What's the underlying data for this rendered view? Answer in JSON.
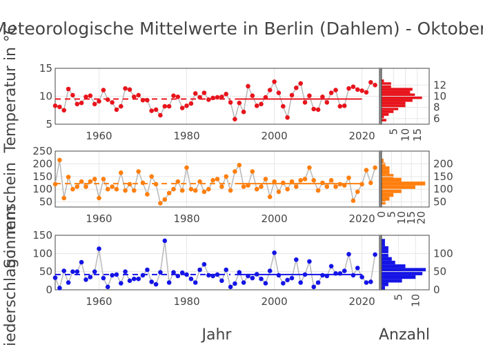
{
  "title": "Meteorologische Mittelwerte in Berlin (Dahlem) - Oktober",
  "x_axis_title": "Jahr",
  "hist_axis_title": "Anzahl",
  "chart_data": [
    {
      "type": "line",
      "name": "temperature",
      "ylabel": "Temperatur in °C",
      "color": "#e8141c",
      "xlim": [
        1950,
        2024
      ],
      "ylim": [
        5,
        15
      ],
      "x_ticks": [
        "1960",
        "1980",
        "2000",
        "2020"
      ],
      "y_ticks": [
        "5",
        "10",
        "15"
      ],
      "x": [
        1950,
        1951,
        1952,
        1953,
        1954,
        1955,
        1956,
        1957,
        1958,
        1959,
        1960,
        1961,
        1962,
        1963,
        1964,
        1965,
        1966,
        1967,
        1968,
        1969,
        1970,
        1971,
        1972,
        1973,
        1974,
        1975,
        1976,
        1977,
        1978,
        1979,
        1980,
        1981,
        1982,
        1983,
        1984,
        1985,
        1986,
        1987,
        1988,
        1989,
        1990,
        1991,
        1992,
        1993,
        1994,
        1995,
        1996,
        1997,
        1998,
        1999,
        2000,
        2001,
        2002,
        2003,
        2004,
        2005,
        2006,
        2007,
        2008,
        2009,
        2010,
        2011,
        2012,
        2013,
        2014,
        2015,
        2016,
        2017,
        2018,
        2019,
        2020,
        2021,
        2022,
        2023
      ],
      "values": [
        8.3,
        8.1,
        7.5,
        11.3,
        10.2,
        8.6,
        8.8,
        9.9,
        10.1,
        8.6,
        9.1,
        11.1,
        9.4,
        8.9,
        7.6,
        8.2,
        11.4,
        11.2,
        9.9,
        10.2,
        9.3,
        9.3,
        7.4,
        7.6,
        6.6,
        8.2,
        8.2,
        10.1,
        9.9,
        7.9,
        8.3,
        8.7,
        10.5,
        9.8,
        10.6,
        9.4,
        9.7,
        9.8,
        9.9,
        10.4,
        8.9,
        5.9,
        8.8,
        7.2,
        11.8,
        10.1,
        8.3,
        8.6,
        9.8,
        11.1,
        12.6,
        10.6,
        8.2,
        6.2,
        10.2,
        11.5,
        12.3,
        8.9,
        10.1,
        7.7,
        7.6,
        9.9,
        8.9,
        10.6,
        11.1,
        8.2,
        8.3,
        11.4,
        11.7,
        11.2,
        11.0,
        10.7,
        12.5,
        12.0
      ],
      "mean_dashed": {
        "from": 1950,
        "to": 1990,
        "value": 9.5
      },
      "mean_solid": {
        "from": 1991,
        "to": 2020,
        "value": 9.5
      },
      "histogram": {
        "bins": [
          5.5,
          6,
          6.5,
          7,
          7.5,
          8,
          8.5,
          9,
          9.5,
          10,
          10.5,
          11,
          11.5,
          12,
          12.5,
          13
        ],
        "counts": [
          2,
          1,
          3,
          5,
          7,
          10,
          10,
          13,
          17,
          14,
          12,
          13,
          4,
          4,
          1,
          0
        ],
        "y_ticks": [
          "6",
          "8",
          "10",
          "12"
        ],
        "x_ticks": [
          "5",
          "10",
          "15"
        ]
      }
    },
    {
      "type": "line",
      "name": "sunshine",
      "ylabel": "Sonnenschein",
      "color": "#ff7f0e",
      "xlim": [
        1950,
        2024
      ],
      "ylim": [
        30,
        250
      ],
      "x_ticks": [
        "1960",
        "1980",
        "2000",
        "2020"
      ],
      "y_ticks": [
        "50",
        "100",
        "150",
        "200",
        "250"
      ],
      "x": [
        1950,
        1951,
        1952,
        1953,
        1954,
        1955,
        1956,
        1957,
        1958,
        1959,
        1960,
        1961,
        1962,
        1963,
        1964,
        1965,
        1966,
        1967,
        1968,
        1969,
        1970,
        1971,
        1972,
        1973,
        1974,
        1975,
        1976,
        1977,
        1978,
        1979,
        1980,
        1981,
        1982,
        1983,
        1984,
        1985,
        1986,
        1987,
        1988,
        1989,
        1990,
        1991,
        1992,
        1993,
        1994,
        1995,
        1996,
        1997,
        1998,
        1999,
        2000,
        2001,
        2002,
        2003,
        2004,
        2005,
        2006,
        2007,
        2008,
        2009,
        2010,
        2011,
        2012,
        2013,
        2014,
        2015,
        2016,
        2017,
        2018,
        2019,
        2020,
        2021,
        2022,
        2023
      ],
      "values": [
        120,
        215,
        65,
        148,
        100,
        110,
        130,
        110,
        130,
        140,
        65,
        140,
        100,
        110,
        100,
        165,
        95,
        120,
        95,
        170,
        125,
        80,
        150,
        120,
        45,
        60,
        85,
        100,
        130,
        95,
        185,
        100,
        95,
        130,
        90,
        100,
        135,
        140,
        110,
        150,
        95,
        170,
        195,
        110,
        115,
        170,
        100,
        110,
        140,
        70,
        130,
        90,
        125,
        100,
        130,
        110,
        135,
        140,
        185,
        135,
        95,
        125,
        110,
        135,
        110,
        120,
        115,
        145,
        55,
        90,
        120,
        175,
        125,
        185
      ],
      "mean_dashed": {
        "from": 1950,
        "to": 1990,
        "value": 122
      },
      "mean_solid": {
        "from": 1991,
        "to": 2020,
        "value": 122
      },
      "histogram": {
        "bins": [
          40,
          55,
          70,
          85,
          100,
          115,
          130,
          145,
          160,
          175,
          190,
          205,
          220
        ],
        "counts": [
          2,
          4,
          6,
          10,
          17,
          22,
          10,
          6,
          4,
          4,
          2,
          1,
          0
        ],
        "y_ticks": [
          "50",
          "100",
          "150",
          "200"
        ],
        "x_ticks": [
          "0",
          "5",
          "10",
          "15",
          "20"
        ]
      }
    },
    {
      "type": "line",
      "name": "precipitation",
      "ylabel": "Niederschlag in mm",
      "color": "#1414e6",
      "xlim": [
        1950,
        2024
      ],
      "ylim": [
        0,
        150
      ],
      "x_ticks": [
        "1960",
        "1980",
        "2000",
        "2020"
      ],
      "y_ticks": [
        "0",
        "50",
        "100",
        "150"
      ],
      "x": [
        1950,
        1951,
        1952,
        1953,
        1954,
        1955,
        1956,
        1957,
        1958,
        1959,
        1960,
        1961,
        1962,
        1963,
        1964,
        1965,
        1966,
        1967,
        1968,
        1969,
        1970,
        1971,
        1972,
        1973,
        1974,
        1975,
        1976,
        1977,
        1978,
        1979,
        1980,
        1981,
        1982,
        1983,
        1984,
        1985,
        1986,
        1987,
        1988,
        1989,
        1990,
        1991,
        1992,
        1993,
        1994,
        1995,
        1996,
        1997,
        1998,
        1999,
        2000,
        2001,
        2002,
        2003,
        2004,
        2005,
        2006,
        2007,
        2008,
        2009,
        2010,
        2011,
        2012,
        2013,
        2014,
        2015,
        2016,
        2017,
        2018,
        2019,
        2020,
        2021,
        2022,
        2023
      ],
      "values": [
        33,
        5,
        52,
        20,
        50,
        50,
        76,
        28,
        35,
        50,
        113,
        32,
        8,
        40,
        42,
        18,
        50,
        25,
        30,
        30,
        40,
        55,
        22,
        15,
        48,
        135,
        20,
        48,
        38,
        47,
        42,
        30,
        20,
        55,
        70,
        40,
        38,
        42,
        25,
        55,
        8,
        17,
        48,
        20,
        38,
        32,
        43,
        30,
        18,
        52,
        102,
        40,
        18,
        27,
        32,
        83,
        20,
        42,
        78,
        8,
        20,
        40,
        38,
        65,
        45,
        45,
        52,
        98,
        40,
        60,
        35,
        20,
        22,
        97
      ],
      "mean_dashed": {
        "from": 1950,
        "to": 1990,
        "value": 42
      },
      "mean_solid": {
        "from": 1991,
        "to": 2020,
        "value": 42
      },
      "histogram": {
        "bins": [
          0,
          10,
          20,
          30,
          40,
          50,
          60,
          70,
          80,
          90,
          100,
          110,
          120,
          130,
          140
        ],
        "counts": [
          1,
          2,
          6,
          10,
          12,
          13,
          7,
          4,
          3,
          2,
          2,
          2,
          1,
          1,
          0
        ],
        "y_ticks": [
          "0",
          "50",
          "100"
        ],
        "x_ticks": [
          "5",
          "10"
        ]
      }
    }
  ]
}
